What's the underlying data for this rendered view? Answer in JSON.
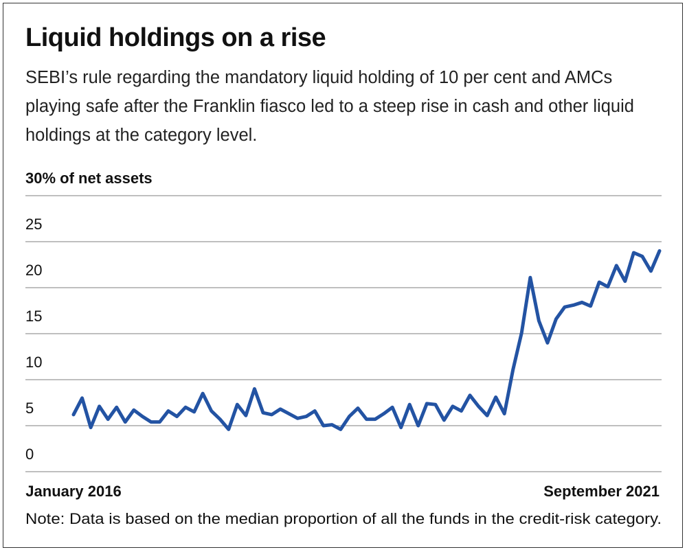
{
  "chart_data": {
    "type": "line",
    "title": "Liquid holdings on a rise",
    "subtitle": "SEBI’s rule regarding the mandatory liquid holding of 10 per cent and AMCs playing safe after the Franklin fiasco led to a steep rise in cash and other liquid holdings at the category level.",
    "note": "Note: Data is based on the median proportion of all the funds in the credit-risk category.",
    "categories": [
      "January 2016",
      null,
      null,
      null,
      null,
      null,
      null,
      null,
      null,
      null,
      null,
      null,
      null,
      null,
      null,
      null,
      null,
      null,
      null,
      null,
      null,
      null,
      null,
      null,
      null,
      null,
      null,
      null,
      null,
      null,
      null,
      null,
      null,
      null,
      null,
      null,
      null,
      null,
      null,
      null,
      null,
      null,
      null,
      null,
      null,
      null,
      null,
      null,
      null,
      null,
      null,
      null,
      null,
      null,
      null,
      null,
      null,
      null,
      null,
      null,
      null,
      null,
      null,
      null,
      null,
      null,
      null,
      null,
      "September 2021"
    ],
    "series": [
      {
        "color": "#2353a3",
        "values": [
          6.2,
          8.0,
          4.8,
          7.1,
          5.7,
          7.0,
          5.4,
          6.7,
          6.0,
          5.4,
          5.4,
          6.6,
          6.0,
          7.0,
          6.5,
          8.5,
          6.6,
          5.7,
          4.6,
          7.3,
          6.1,
          9.0,
          6.4,
          6.2,
          6.8,
          6.3,
          5.8,
          6.0,
          6.6,
          5.0,
          5.1,
          4.6,
          6.0,
          6.9,
          5.7,
          5.7,
          6.3,
          7.0,
          4.8,
          7.3,
          5.0,
          7.4,
          7.3,
          5.6,
          7.1,
          6.6,
          8.3,
          7.1,
          6.1,
          8.1,
          6.3,
          11.1,
          15.1,
          21.1,
          16.4,
          14.0,
          16.6,
          17.9,
          18.1,
          18.4,
          18.0,
          20.6,
          20.1,
          22.4,
          20.7,
          23.8,
          23.4,
          21.8,
          24.0
        ]
      }
    ],
    "ylim": [
      0,
      30
    ],
    "yticks": [
      0,
      5,
      10,
      15,
      20,
      25,
      {
        "value": 30,
        "label": "30% of net assets"
      }
    ],
    "grid": true
  }
}
